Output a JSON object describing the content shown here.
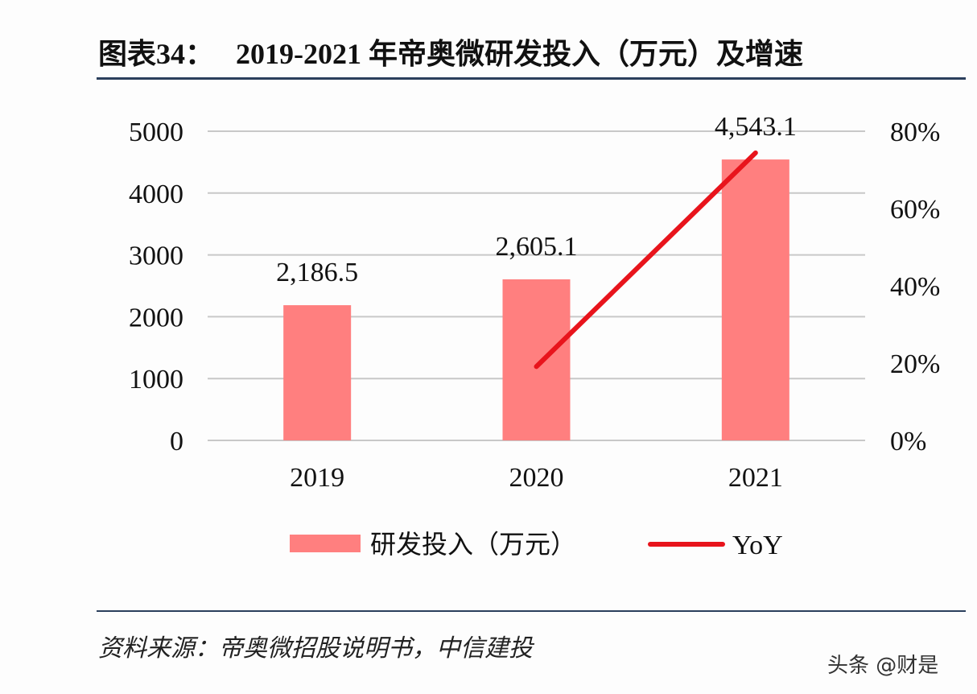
{
  "title": "图表34：   2019-2021 年帝奥微研发投入（万元）及增速",
  "source": "资料来源：帝奥微招股说明书，中信建投",
  "watermark": "头条 @财是",
  "colors": {
    "bar": "#ff7f7f",
    "line": "#e8141c",
    "rule": "#2b3f5c",
    "grid": "#c8c8c8"
  },
  "chart_data": {
    "type": "bar+line",
    "title": "图表34：   2019-2021 年帝奥微研发投入（万元）及增速",
    "categories": [
      "2019",
      "2020",
      "2021"
    ],
    "series": [
      {
        "name": "研发投入（万元）",
        "type": "bar",
        "axis": "left",
        "values": [
          2186.5,
          2605.1,
          4543.1
        ],
        "labels": [
          "2,186.5",
          "2,605.1",
          "4,543.1"
        ]
      },
      {
        "name": "YoY",
        "type": "line",
        "axis": "right",
        "values": [
          null,
          19.1,
          74.4
        ]
      }
    ],
    "y_left": {
      "range": [
        0,
        5000
      ],
      "ticks": [
        "0",
        "1000",
        "2000",
        "3000",
        "4000",
        "5000"
      ]
    },
    "y_right": {
      "range": [
        0,
        80
      ],
      "ticks": [
        "0%",
        "20%",
        "40%",
        "60%",
        "80%"
      ]
    },
    "grid": true,
    "legend": "bottom"
  }
}
